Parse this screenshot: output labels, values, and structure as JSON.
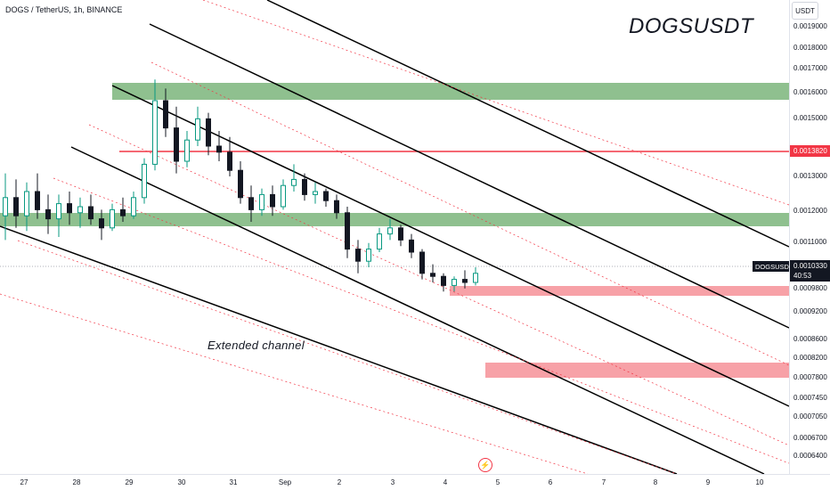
{
  "header": {
    "symbol_line": "DOGS / TetherUS, 1h, BINANCE",
    "watermark": "DOGSUSDT",
    "currency": "USDT",
    "annotation": "Extended channel"
  },
  "chart_data": {
    "type": "candlestick",
    "title": "DOGSUSDT",
    "y_ticks": [
      "0.0019000",
      "0.0018000",
      "0.0017000",
      "0.0016000",
      "0.0015000",
      "0.0014000",
      "0.0013000",
      "0.0012000",
      "0.0011000",
      "0.0009800",
      "0.0009200",
      "0.0008600",
      "0.0008200",
      "0.0007800",
      "0.0007450",
      "0.0007050",
      "0.0006700",
      "0.0006400"
    ],
    "x_ticks": [
      "27",
      "28",
      "29",
      "30",
      "31",
      "Sep",
      "2",
      "3",
      "4",
      "5",
      "6",
      "7",
      "8",
      "9",
      "10"
    ],
    "price_labels": {
      "resistance": {
        "label": "0.0013820",
        "color": "#f23645"
      },
      "current": {
        "symbol": "DOGSUSDT",
        "price": "0.0010330",
        "countdown": "40:53",
        "color": "#131722"
      }
    },
    "series": [
      {
        "x": 0,
        "o": 0.00122,
        "h": 0.00136,
        "l": 0.00114,
        "c": 0.00128
      },
      {
        "x": 2,
        "o": 0.00128,
        "h": 0.00134,
        "l": 0.00118,
        "c": 0.00122
      },
      {
        "x": 4,
        "o": 0.00122,
        "h": 0.00133,
        "l": 0.00117,
        "c": 0.0013
      },
      {
        "x": 6,
        "o": 0.0013,
        "h": 0.00136,
        "l": 0.00121,
        "c": 0.00124
      },
      {
        "x": 8,
        "o": 0.00124,
        "h": 0.00129,
        "l": 0.00116,
        "c": 0.00121
      },
      {
        "x": 10,
        "o": 0.00121,
        "h": 0.00129,
        "l": 0.00115,
        "c": 0.00126
      },
      {
        "x": 12,
        "o": 0.00126,
        "h": 0.0013,
        "l": 0.00119,
        "c": 0.00123
      },
      {
        "x": 14,
        "o": 0.00123,
        "h": 0.00128,
        "l": 0.00118,
        "c": 0.00125
      },
      {
        "x": 16,
        "o": 0.00125,
        "h": 0.00129,
        "l": 0.00119,
        "c": 0.00121
      },
      {
        "x": 18,
        "o": 0.00121,
        "h": 0.00124,
        "l": 0.00114,
        "c": 0.00118
      },
      {
        "x": 20,
        "o": 0.00118,
        "h": 0.00126,
        "l": 0.00117,
        "c": 0.00124
      },
      {
        "x": 22,
        "o": 0.00124,
        "h": 0.00128,
        "l": 0.0012,
        "c": 0.00122
      },
      {
        "x": 24,
        "o": 0.00122,
        "h": 0.0013,
        "l": 0.00121,
        "c": 0.00128
      },
      {
        "x": 26,
        "o": 0.00128,
        "h": 0.00141,
        "l": 0.00126,
        "c": 0.00139
      },
      {
        "x": 28,
        "o": 0.00139,
        "h": 0.00167,
        "l": 0.00137,
        "c": 0.0016
      },
      {
        "x": 30,
        "o": 0.0016,
        "h": 0.00164,
        "l": 0.00148,
        "c": 0.00151
      },
      {
        "x": 32,
        "o": 0.00151,
        "h": 0.00158,
        "l": 0.00136,
        "c": 0.0014
      },
      {
        "x": 34,
        "o": 0.0014,
        "h": 0.0015,
        "l": 0.00138,
        "c": 0.00147
      },
      {
        "x": 36,
        "o": 0.00147,
        "h": 0.00158,
        "l": 0.00145,
        "c": 0.00154
      },
      {
        "x": 38,
        "o": 0.00154,
        "h": 0.00156,
        "l": 0.00142,
        "c": 0.00145
      },
      {
        "x": 40,
        "o": 0.00145,
        "h": 0.0015,
        "l": 0.0014,
        "c": 0.00143
      },
      {
        "x": 42,
        "o": 0.00143,
        "h": 0.00148,
        "l": 0.00135,
        "c": 0.00137
      },
      {
        "x": 44,
        "o": 0.00137,
        "h": 0.0014,
        "l": 0.00126,
        "c": 0.00128
      },
      {
        "x": 46,
        "o": 0.00128,
        "h": 0.00132,
        "l": 0.0012,
        "c": 0.00124
      },
      {
        "x": 48,
        "o": 0.00124,
        "h": 0.00131,
        "l": 0.00122,
        "c": 0.00129
      },
      {
        "x": 50,
        "o": 0.00129,
        "h": 0.00132,
        "l": 0.00122,
        "c": 0.00125
      },
      {
        "x": 52,
        "o": 0.00125,
        "h": 0.00134,
        "l": 0.00124,
        "c": 0.00132
      },
      {
        "x": 54,
        "o": 0.00132,
        "h": 0.00139,
        "l": 0.0013,
        "c": 0.00134
      },
      {
        "x": 56,
        "o": 0.00134,
        "h": 0.00136,
        "l": 0.00127,
        "c": 0.00129
      },
      {
        "x": 58,
        "o": 0.00129,
        "h": 0.00133,
        "l": 0.00126,
        "c": 0.0013
      },
      {
        "x": 60,
        "o": 0.0013,
        "h": 0.00131,
        "l": 0.00125,
        "c": 0.00127
      },
      {
        "x": 62,
        "o": 0.00127,
        "h": 0.00129,
        "l": 0.00121,
        "c": 0.00123
      },
      {
        "x": 64,
        "o": 0.00123,
        "h": 0.00125,
        "l": 0.00108,
        "c": 0.00111
      },
      {
        "x": 66,
        "o": 0.00111,
        "h": 0.00114,
        "l": 0.00103,
        "c": 0.00107
      },
      {
        "x": 68,
        "o": 0.00107,
        "h": 0.00113,
        "l": 0.00105,
        "c": 0.00111
      },
      {
        "x": 70,
        "o": 0.00111,
        "h": 0.00118,
        "l": 0.0011,
        "c": 0.00116
      },
      {
        "x": 72,
        "o": 0.00116,
        "h": 0.00121,
        "l": 0.00114,
        "c": 0.00118
      },
      {
        "x": 74,
        "o": 0.00118,
        "h": 0.00119,
        "l": 0.00112,
        "c": 0.00114
      },
      {
        "x": 76,
        "o": 0.00114,
        "h": 0.00116,
        "l": 0.00108,
        "c": 0.0011
      },
      {
        "x": 78,
        "o": 0.0011,
        "h": 0.00111,
        "l": 0.00101,
        "c": 0.00103
      },
      {
        "x": 80,
        "o": 0.00103,
        "h": 0.00106,
        "l": 0.001,
        "c": 0.00102
      },
      {
        "x": 82,
        "o": 0.00102,
        "h": 0.00103,
        "l": 0.00097,
        "c": 0.00099
      },
      {
        "x": 84,
        "o": 0.00099,
        "h": 0.00102,
        "l": 0.00097,
        "c": 0.00101
      },
      {
        "x": 86,
        "o": 0.00101,
        "h": 0.00104,
        "l": 0.00098,
        "c": 0.001
      },
      {
        "x": 88,
        "o": 0.001,
        "h": 0.00105,
        "l": 0.00099,
        "c": 0.00103
      }
    ]
  },
  "colors": {
    "up": "#089981",
    "down": "#131722",
    "zone_green": "#8fc08f",
    "zone_red": "#f7a1a7",
    "resistance": "#f23645",
    "channel": "#000000",
    "channel_dotted": "#f23645",
    "grid_text": "#131722"
  }
}
